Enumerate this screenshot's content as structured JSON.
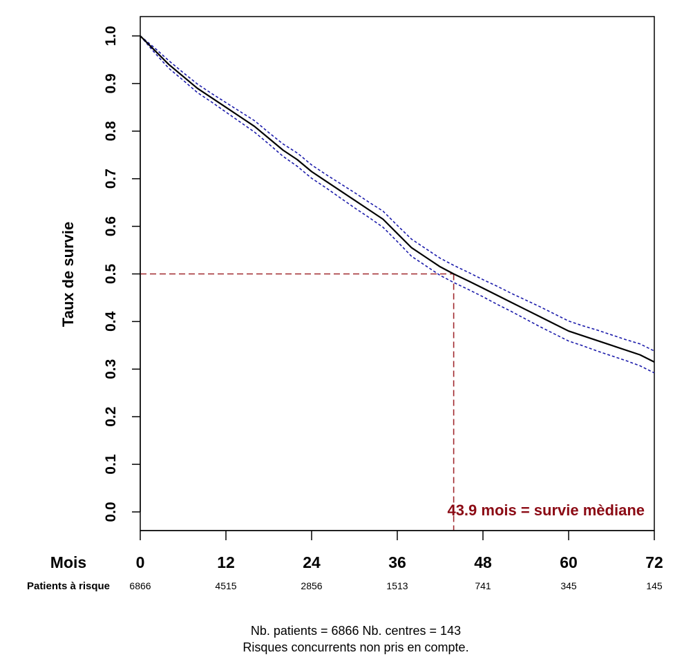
{
  "chart_data": {
    "type": "line",
    "ylabel": "Taux de survie",
    "xlabel": "Mois",
    "xlim": [
      0,
      72
    ],
    "ylim": [
      0,
      1
    ],
    "x_ticks": [
      "0",
      "12",
      "24",
      "36",
      "48",
      "60",
      "72"
    ],
    "y_ticks": [
      "0.0",
      "0.1",
      "0.2",
      "0.3",
      "0.4",
      "0.5",
      "0.6",
      "0.7",
      "0.8",
      "0.9",
      "1.0"
    ],
    "series": [
      {
        "x": [
          0,
          2,
          4,
          6,
          8,
          10,
          12,
          14,
          16,
          18,
          20,
          22,
          24,
          26,
          28,
          30,
          32,
          34,
          36,
          38,
          40,
          42,
          43.9,
          46,
          48,
          50,
          52,
          54,
          56,
          58,
          60,
          62,
          64,
          66,
          68,
          70,
          72
        ],
        "y": [
          1.0,
          0.97,
          0.94,
          0.915,
          0.89,
          0.87,
          0.85,
          0.83,
          0.81,
          0.785,
          0.76,
          0.74,
          0.715,
          0.695,
          0.675,
          0.655,
          0.635,
          0.615,
          0.585,
          0.555,
          0.535,
          0.515,
          0.5,
          0.485,
          0.47,
          0.455,
          0.44,
          0.425,
          0.41,
          0.395,
          0.38,
          0.37,
          0.36,
          0.35,
          0.34,
          0.33,
          0.315
        ]
      },
      {
        "x": [
          0,
          2,
          4,
          6,
          8,
          10,
          12,
          14,
          16,
          18,
          20,
          22,
          24,
          26,
          28,
          30,
          32,
          34,
          36,
          38,
          40,
          42,
          43.9,
          46,
          48,
          50,
          52,
          54,
          56,
          58,
          60,
          62,
          64,
          66,
          68,
          70,
          72
        ],
        "y": [
          1.0,
          0.975,
          0.948,
          0.923,
          0.899,
          0.879,
          0.86,
          0.841,
          0.822,
          0.797,
          0.773,
          0.754,
          0.729,
          0.709,
          0.69,
          0.671,
          0.651,
          0.632,
          0.602,
          0.573,
          0.553,
          0.533,
          0.518,
          0.503,
          0.488,
          0.474,
          0.459,
          0.445,
          0.431,
          0.416,
          0.401,
          0.391,
          0.382,
          0.372,
          0.362,
          0.353,
          0.338
        ]
      },
      {
        "x": [
          0,
          2,
          4,
          6,
          8,
          10,
          12,
          14,
          16,
          18,
          20,
          22,
          24,
          26,
          28,
          30,
          32,
          34,
          36,
          38,
          40,
          42,
          43.9,
          46,
          48,
          50,
          52,
          54,
          56,
          58,
          60,
          62,
          64,
          66,
          68,
          70,
          72
        ],
        "y": [
          1.0,
          0.965,
          0.932,
          0.907,
          0.881,
          0.861,
          0.84,
          0.819,
          0.798,
          0.773,
          0.747,
          0.726,
          0.701,
          0.681,
          0.66,
          0.639,
          0.619,
          0.598,
          0.568,
          0.537,
          0.517,
          0.497,
          0.482,
          0.467,
          0.452,
          0.436,
          0.421,
          0.405,
          0.389,
          0.374,
          0.359,
          0.349,
          0.338,
          0.328,
          0.318,
          0.307,
          0.292
        ]
      }
    ],
    "median": {
      "x": 43.9,
      "y": 0.5,
      "label": "43.9 mois = survie mèdiane"
    },
    "risk_table": {
      "label": "Patients à risque",
      "values": [
        "6866",
        "4515",
        "2856",
        "1513",
        "741",
        "345",
        "145"
      ]
    },
    "footer": [
      "Nb. patients = 6866    Nb. centres = 143",
      "Risques concurrents non pris en compte."
    ]
  },
  "colors": {
    "survival_line": "#000000",
    "ci_lines": "#1a1aaa",
    "median_lines": "#a0282d",
    "median_text": "#8b0a14"
  }
}
